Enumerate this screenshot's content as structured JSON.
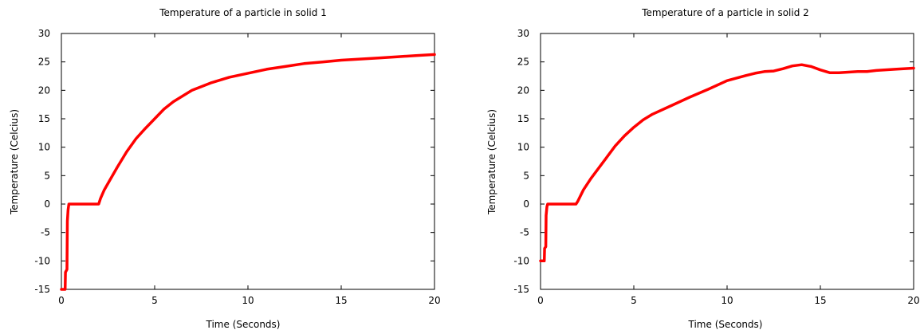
{
  "chart_data": [
    {
      "type": "line",
      "title": "Temperature of a particle in solid 1",
      "xlabel": "Time (Seconds)",
      "ylabel": "Temperature (Celcius)",
      "xlim": [
        0,
        20
      ],
      "ylim": [
        -15,
        30
      ],
      "xticks": [
        0,
        5,
        10,
        15,
        20
      ],
      "yticks": [
        -15,
        -10,
        -5,
        0,
        5,
        10,
        15,
        20,
        25,
        30
      ],
      "grid": false,
      "series": [
        {
          "color": "#ff0000",
          "points": [
            [
              0,
              -15
            ],
            [
              0.2,
              -15
            ],
            [
              0.22,
              -12
            ],
            [
              0.3,
              -11.5
            ],
            [
              0.32,
              -3
            ],
            [
              0.36,
              -1
            ],
            [
              0.4,
              0
            ],
            [
              2.0,
              0
            ],
            [
              2.1,
              1
            ],
            [
              2.3,
              2.5
            ],
            [
              2.6,
              4.2
            ],
            [
              3.0,
              6.5
            ],
            [
              3.5,
              9.2
            ],
            [
              4.0,
              11.5
            ],
            [
              4.5,
              13.3
            ],
            [
              5.0,
              15.0
            ],
            [
              5.5,
              16.7
            ],
            [
              6.0,
              18.0
            ],
            [
              7.0,
              20.0
            ],
            [
              8.0,
              21.3
            ],
            [
              9.0,
              22.3
            ],
            [
              10.0,
              23.0
            ],
            [
              11.0,
              23.7
            ],
            [
              12.0,
              24.2
            ],
            [
              13.0,
              24.7
            ],
            [
              14.0,
              25.0
            ],
            [
              15.0,
              25.3
            ],
            [
              16.0,
              25.5
            ],
            [
              17.0,
              25.7
            ],
            [
              18.0,
              25.9
            ],
            [
              19.0,
              26.1
            ],
            [
              20.0,
              26.3
            ]
          ]
        }
      ]
    },
    {
      "type": "line",
      "title": "Temperature of a particle in solid 2",
      "xlabel": "Time (Seconds)",
      "ylabel": "Temperature (Celcius)",
      "xlim": [
        0,
        20
      ],
      "ylim": [
        -15,
        30
      ],
      "xticks": [
        0,
        5,
        10,
        15,
        20
      ],
      "yticks": [
        -15,
        -10,
        -5,
        0,
        5,
        10,
        15,
        20,
        25,
        30
      ],
      "grid": false,
      "series": [
        {
          "color": "#ff0000",
          "points": [
            [
              0,
              -10
            ],
            [
              0.2,
              -10
            ],
            [
              0.22,
              -7.8
            ],
            [
              0.28,
              -7.5
            ],
            [
              0.3,
              -2
            ],
            [
              0.34,
              -0.5
            ],
            [
              0.38,
              0
            ],
            [
              1.9,
              0
            ],
            [
              2.0,
              0.5
            ],
            [
              2.3,
              2.5
            ],
            [
              2.7,
              4.5
            ],
            [
              3.0,
              5.8
            ],
            [
              3.5,
              8.0
            ],
            [
              4.0,
              10.2
            ],
            [
              4.5,
              12.0
            ],
            [
              5.0,
              13.5
            ],
            [
              5.5,
              14.8
            ],
            [
              6.0,
              15.8
            ],
            [
              7.0,
              17.3
            ],
            [
              8.0,
              18.8
            ],
            [
              9.0,
              20.2
            ],
            [
              10.0,
              21.7
            ],
            [
              11.0,
              22.6
            ],
            [
              11.5,
              23.0
            ],
            [
              12.0,
              23.3
            ],
            [
              12.5,
              23.4
            ],
            [
              13.0,
              23.8
            ],
            [
              13.5,
              24.3
            ],
            [
              14.0,
              24.5
            ],
            [
              14.5,
              24.2
            ],
            [
              15.0,
              23.6
            ],
            [
              15.5,
              23.1
            ],
            [
              16.0,
              23.1
            ],
            [
              16.5,
              23.2
            ],
            [
              17.0,
              23.3
            ],
            [
              17.5,
              23.3
            ],
            [
              18.0,
              23.5
            ],
            [
              19.0,
              23.7
            ],
            [
              20.0,
              23.9
            ]
          ]
        }
      ]
    }
  ]
}
